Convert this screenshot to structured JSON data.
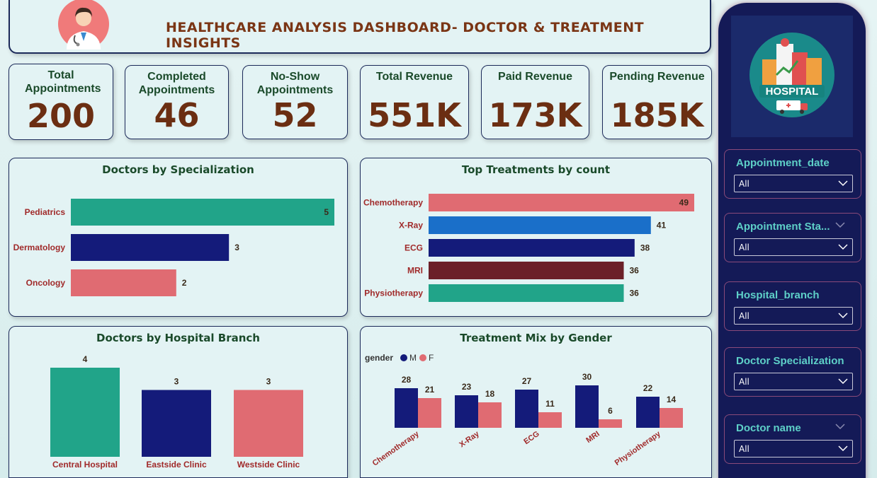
{
  "header": {
    "title": "HEALTHCARE ANALYSIS DASHBOARD- DOCTOR & TREATMENT INSIGHTS"
  },
  "kpis": [
    {
      "label": "Total Appointments",
      "value": "200"
    },
    {
      "label": "Completed Appointments",
      "value": "46"
    },
    {
      "label": "No-Show Appointments",
      "value": "52"
    },
    {
      "label": "Total Revenue",
      "value": "551K"
    },
    {
      "label": "Paid Revenue",
      "value": "173K"
    },
    {
      "label": "Pending Revenue",
      "value": "185K"
    }
  ],
  "sidebar": {
    "logo_text": "HOSPITAL",
    "filters": [
      {
        "label": "Appointment_date",
        "value": "All"
      },
      {
        "label": "Appointment Sta...",
        "value": "All"
      },
      {
        "label": "Hospital_branch",
        "value": "All"
      },
      {
        "label": "Doctor Specialization",
        "value": "All"
      },
      {
        "label": "Doctor name",
        "value": "All"
      }
    ]
  },
  "colors": {
    "teal": "#21a489",
    "navy": "#141b7a",
    "coral": "#e06b72",
    "blue": "#1a6fc9",
    "maroon": "#6b2028",
    "title_brown": "#7a3515",
    "label_red": "#a02a2a"
  },
  "chart_data": [
    {
      "id": "doctors_by_specialization",
      "type": "bar",
      "orientation": "horizontal",
      "title": "Doctors by Specialization",
      "categories": [
        "Pediatrics",
        "Dermatology",
        "Oncology"
      ],
      "values": [
        5,
        3,
        2
      ],
      "colors": [
        "#21a489",
        "#141b7a",
        "#e06b72"
      ]
    },
    {
      "id": "top_treatments",
      "type": "bar",
      "orientation": "horizontal",
      "title": "Top Treatments by count",
      "categories": [
        "Chemotherapy",
        "X-Ray",
        "ECG",
        "MRI",
        "Physiotherapy"
      ],
      "values": [
        49,
        41,
        38,
        36,
        36
      ],
      "colors": [
        "#e06b72",
        "#1a6fc9",
        "#141b7a",
        "#6b2028",
        "#21a489"
      ]
    },
    {
      "id": "doctors_by_branch",
      "type": "bar",
      "orientation": "vertical",
      "title": "Doctors by Hospital Branch",
      "categories": [
        "Central Hospital",
        "Eastside Clinic",
        "Westside Clinic"
      ],
      "values": [
        4,
        3,
        3
      ],
      "colors": [
        "#21a489",
        "#141b7a",
        "#e06b72"
      ]
    },
    {
      "id": "treatment_mix_gender",
      "type": "bar",
      "orientation": "vertical",
      "title": "Treatment Mix by Gender",
      "legend_title": "gender",
      "categories": [
        "Chemotherapy",
        "X-Ray",
        "ECG",
        "MRI",
        "Physiotherapy"
      ],
      "series": [
        {
          "name": "M",
          "values": [
            28,
            23,
            27,
            30,
            22
          ],
          "color": "#141b7a"
        },
        {
          "name": "F",
          "values": [
            21,
            18,
            11,
            6,
            14
          ],
          "color": "#e06b72"
        }
      ]
    }
  ]
}
